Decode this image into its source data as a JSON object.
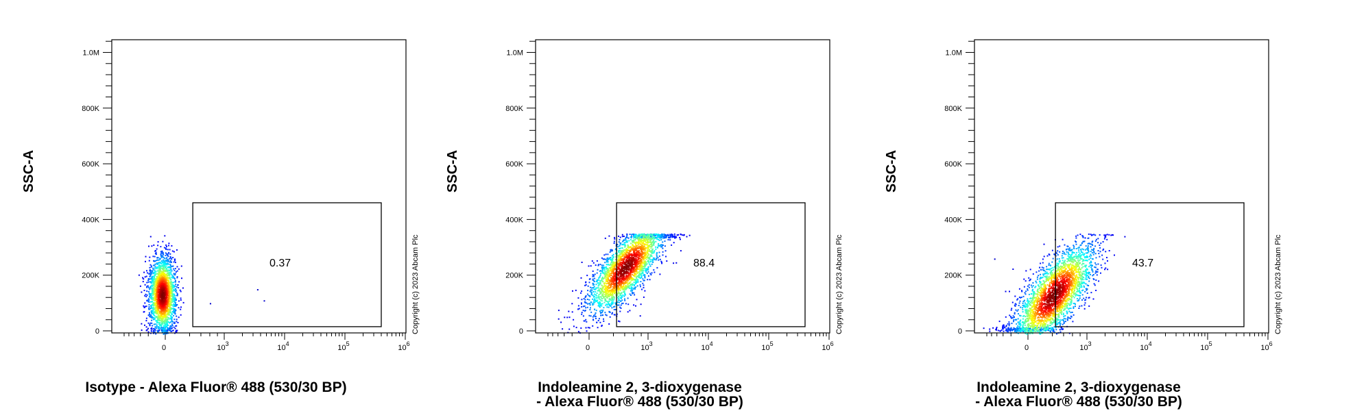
{
  "chart_data": [
    {
      "type": "scatter",
      "title": "",
      "xlabel": "Isotype - Alexa Fluor® 488 (530/30 BP)",
      "xlabel_lines": [
        "Isotype - Alexa Fluor® 488 (530/30 BP)"
      ],
      "ylabel": "SSC-A",
      "x_scale": "biexponential",
      "x_ticks": [
        "0",
        "10^3",
        "10^4",
        "10^5",
        "10^6"
      ],
      "y_ticks": [
        "0",
        "200K",
        "400K",
        "600K",
        "800K",
        "1.0M"
      ],
      "ylim": [
        0,
        1050000
      ],
      "gate": {
        "label": "0.37",
        "x_range": [
          250,
          400000
        ],
        "y_range": [
          15000,
          460000
        ]
      },
      "population": {
        "x_center": -10,
        "x_spread": 70,
        "y_center": 130000,
        "y_spread": 70000,
        "y_max": 350000,
        "n": 2200,
        "tilt": 0
      },
      "outliers": [
        [
          3500,
          150000
        ],
        [
          4500,
          110000
        ],
        [
          600,
          100000
        ]
      ],
      "colormap": "jet",
      "copyright": "Copyright (c) 2023 Abcam Plc"
    },
    {
      "type": "scatter",
      "title": "",
      "xlabel": "Indoleamine 2, 3-dioxygenase - Alexa Fluor® 488 (530/30 BP)",
      "xlabel_lines": [
        "Indoleamine 2, 3-dioxygenase",
        "- Alexa Fluor® 488 (530/30 BP)"
      ],
      "ylabel": "SSC-A",
      "x_scale": "biexponential",
      "x_ticks": [
        "0",
        "10^3",
        "10^4",
        "10^5",
        "10^6"
      ],
      "y_ticks": [
        "0",
        "200K",
        "400K",
        "600K",
        "800K",
        "1.0M"
      ],
      "ylim": [
        0,
        1050000
      ],
      "gate": {
        "label": "88.4",
        "x_range": [
          250,
          400000
        ],
        "y_range": [
          15000,
          460000
        ]
      },
      "population": {
        "x_center": 420,
        "x_spread": 0.55,
        "y_center": 230000,
        "y_spread": 55000,
        "y_max": 350000,
        "n": 2600,
        "tilt": 1
      },
      "outliers": [],
      "colormap": "jet",
      "copyright": "Copyright (c) 2023 Abcam Plc"
    },
    {
      "type": "scatter",
      "title": "",
      "xlabel": "Indoleamine 2, 3-dioxygenase - Alexa Fluor® 488 (530/30 BP)",
      "xlabel_lines": [
        "Indoleamine 2, 3-dioxygenase",
        "- Alexa Fluor® 488 (530/30 BP)"
      ],
      "ylabel": "SSC-A",
      "x_scale": "biexponential",
      "x_ticks": [
        "0",
        "10^3",
        "10^4",
        "10^5",
        "10^6"
      ],
      "y_ticks": [
        "0",
        "200K",
        "400K",
        "600K",
        "800K",
        "1.0M"
      ],
      "ylim": [
        0,
        1050000
      ],
      "gate": {
        "label": "43.7",
        "x_range": [
          250,
          400000
        ],
        "y_range": [
          15000,
          460000
        ]
      },
      "population": {
        "x_center": 220,
        "x_spread": 0.7,
        "y_center": 130000,
        "y_spread": 65000,
        "y_max": 350000,
        "n": 2800,
        "tilt": 1
      },
      "outliers": [
        [
          -700,
          260000
        ]
      ],
      "colormap": "jet",
      "copyright": "Copyright (c) 2023 Abcam Plc"
    }
  ]
}
